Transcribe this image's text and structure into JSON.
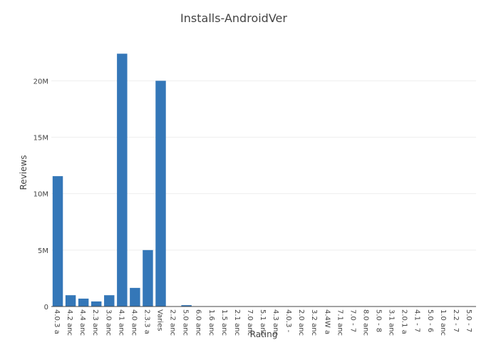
{
  "chart_data": {
    "type": "bar",
    "title": "Installs-AndroidVer",
    "xlabel": "Rating",
    "ylabel": "Reviews",
    "categories": [
      "4.0.3 a",
      "4.2 anc",
      "4.4 anc",
      "2.3 anc",
      "3.0 anc",
      "4.1 anc",
      "4.0 anc",
      "2.3.3 a",
      "Varies",
      "2.2 anc",
      "5.0 anc",
      "6.0 anc",
      "1.6 anc",
      "1.5 anc",
      "2.1 anc",
      "7.0 anc",
      "5.1 anc",
      "4.3 anc",
      "4.0.3 -",
      "2.0 anc",
      "3.2 anc",
      "4.4W a",
      "7.1 anc",
      "7.0 - 7",
      "8.0 anc",
      "5.0 - 8",
      "3.1 anc",
      "2.0.1 a",
      "4.1 - 7",
      "5.0 - 6",
      "1.0 anc",
      "2.2 - 7",
      "5.0 - 7"
    ],
    "values": [
      11550000,
      1000000,
      700000,
      450000,
      1000000,
      22400000,
      1650000,
      5000000,
      20000000,
      0,
      120000,
      10000,
      5000,
      3000,
      5000,
      6000,
      5000,
      5000,
      3000,
      2000,
      2000,
      3000,
      2000,
      1000,
      1000,
      1000,
      1000,
      500,
      500,
      500,
      300,
      300,
      300
    ],
    "ylim": [
      0,
      24000000
    ],
    "yticks": [
      0,
      5000000,
      10000000,
      15000000,
      20000000
    ],
    "ytick_labels": [
      "0",
      "5M",
      "10M",
      "15M",
      "20M"
    ],
    "grid": true,
    "colors": {
      "bar": "#3477b8",
      "grid": "#eeeeee",
      "text": "#444444"
    }
  }
}
